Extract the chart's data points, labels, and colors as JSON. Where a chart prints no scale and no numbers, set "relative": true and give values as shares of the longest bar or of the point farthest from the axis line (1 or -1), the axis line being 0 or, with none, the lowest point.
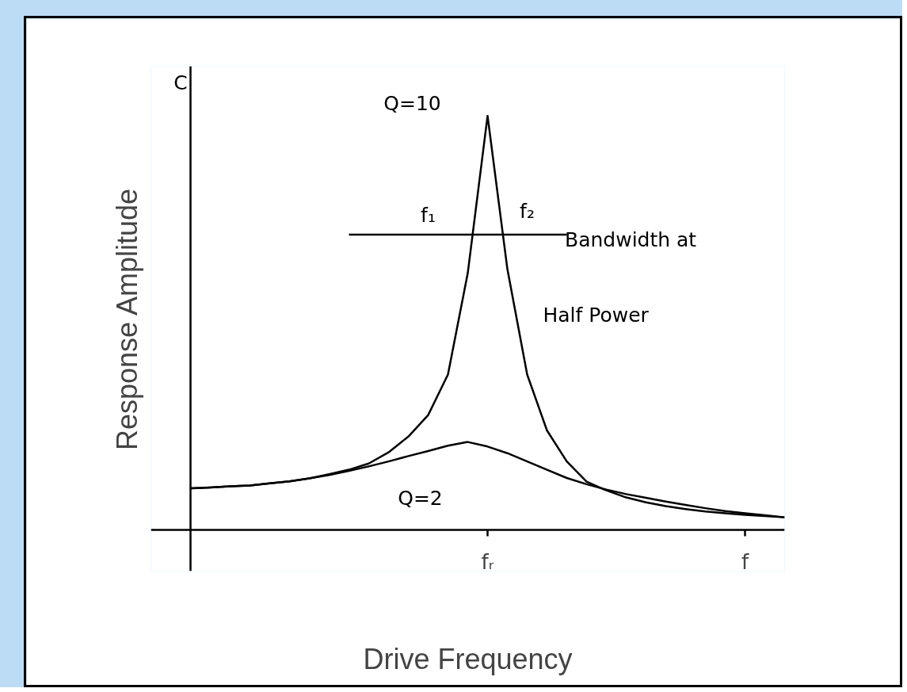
{
  "chart_data": {
    "type": "line",
    "relative": true,
    "xlabel": "Drive Frequency",
    "ylabel": "Response Amplitude",
    "categories": [
      null,
      null,
      null,
      null,
      null,
      null,
      null,
      null,
      null,
      null,
      null,
      null,
      null,
      null,
      null,
      "fᵣ",
      null,
      null,
      null,
      null,
      null,
      null,
      null,
      null,
      null,
      null,
      null,
      null,
      "f",
      null,
      null
    ],
    "series": [
      {
        "color": "#000000",
        "values": [
          0.1,
          0.102,
          0.105,
          0.107,
          0.112,
          0.117,
          0.124,
          0.134,
          0.145,
          0.16,
          0.187,
          0.225,
          0.277,
          0.375,
          0.62,
          1.0,
          0.63,
          0.375,
          0.24,
          0.165,
          0.116,
          0.095,
          0.078,
          0.066,
          0.057,
          0.05,
          0.044,
          0.04,
          0.036,
          0.033,
          0.03
        ]
      },
      {
        "color": "#000000",
        "values": [
          0.1,
          0.102,
          0.105,
          0.107,
          0.112,
          0.117,
          0.124,
          0.132,
          0.142,
          0.153,
          0.165,
          0.178,
          0.19,
          0.203,
          0.212,
          0.201,
          0.185,
          0.165,
          0.145,
          0.125,
          0.11,
          0.097,
          0.086,
          0.077,
          0.068,
          0.06,
          0.052,
          0.045,
          0.04,
          0.035,
          0.03
        ]
      },
      {
        "color": "#000000",
        "values": [
          null,
          null,
          null,
          null,
          null,
          null,
          null,
          null,
          0.713,
          0.713,
          0.713,
          0.713,
          0.713,
          0.713,
          0.713,
          0.713,
          0.713,
          0.713,
          0.713,
          0.713,
          null,
          null,
          null,
          null,
          null,
          null,
          null,
          null,
          null,
          null,
          null
        ]
      }
    ],
    "annotations": [
      "C",
      "Q=10",
      "f₁",
      "f₂",
      "Bandwidth at",
      "Half Power",
      "Q=2"
    ],
    "grid": false
  }
}
